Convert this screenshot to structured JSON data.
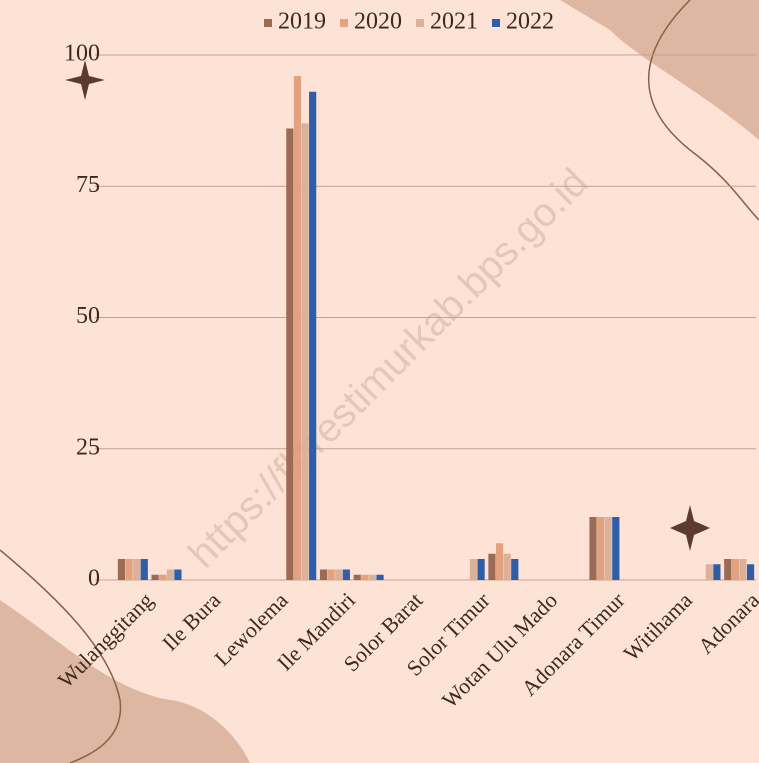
{
  "watermark": "https://florestimurkab.bps.go.id",
  "chart_data": {
    "type": "bar",
    "categories": [
      "Wulanggitang",
      null,
      "Ile Bura",
      null,
      "Lewolema",
      null,
      "Ile Mandiri",
      null,
      "Solor Barat",
      null,
      "Solor Timur",
      null,
      "Wotan Ulu Mado",
      null,
      "Adonara Timur",
      null,
      "Witihama",
      null,
      "Adonara"
    ],
    "series": [
      {
        "name": "2019",
        "color": "#9c6b55",
        "values": [
          4,
          1,
          0,
          0,
          0,
          86,
          2,
          1,
          0,
          0,
          0,
          5,
          0,
          0,
          12,
          0,
          0,
          0,
          4
        ]
      },
      {
        "name": "2020",
        "color": "#e3a27f",
        "values": [
          4,
          1,
          0,
          0,
          0,
          96,
          2,
          1,
          0,
          0,
          0,
          7,
          0,
          0,
          12,
          0,
          0,
          0,
          4
        ]
      },
      {
        "name": "2021",
        "color": "#dbb19a",
        "values": [
          4,
          2,
          0,
          0,
          0,
          87,
          2,
          1,
          0,
          0,
          4,
          5,
          0,
          0,
          12,
          0,
          0,
          3,
          4
        ]
      },
      {
        "name": "2022",
        "color": "#2f5ea8",
        "values": [
          4,
          2,
          0,
          0,
          0,
          93,
          2,
          1,
          0,
          0,
          4,
          4,
          0,
          0,
          12,
          0,
          0,
          3,
          3
        ]
      }
    ],
    "ylim": [
      0,
      100
    ],
    "yticks": [
      0,
      25,
      50,
      75,
      100
    ],
    "grid": true,
    "legend": "top"
  }
}
